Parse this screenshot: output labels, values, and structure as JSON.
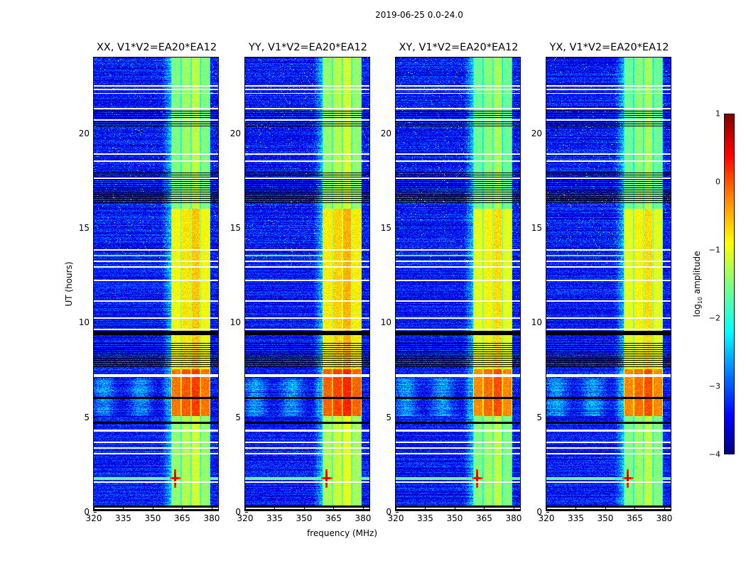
{
  "chart_data": {
    "type": "heatmap",
    "title": "2019-06-25 0.0-24.0",
    "panels": [
      {
        "title": "XX, V1*V2=EA20*EA12",
        "band_boost": 0.0
      },
      {
        "title": "YY, V1*V2=EA20*EA12",
        "band_boost": 0.1
      },
      {
        "title": "XY, V1*V2=EA20*EA12",
        "band_boost": -0.1
      },
      {
        "title": "YX, V1*V2=EA20*EA12",
        "band_boost": -0.1
      }
    ],
    "xlabel": "frequency (MHz)",
    "ylabel": "UT (hours)",
    "xlim": [
      320,
      384
    ],
    "ylim": [
      0,
      24
    ],
    "xticks": [
      "320",
      "335",
      "350",
      "365",
      "380"
    ],
    "yticks": [
      "0",
      "5",
      "10",
      "15",
      "20"
    ],
    "colorbar": {
      "label_prefix": "log",
      "label_sub": "10",
      "label_suffix": " amplitude",
      "range": [
        -4,
        1
      ],
      "ticks": [
        "1",
        "0",
        "−1",
        "−2",
        "−3",
        "−4"
      ]
    },
    "background_log_amplitude": -3.3,
    "bright_subbands_mhz": [
      [
        360,
        365
      ],
      [
        365,
        370
      ],
      [
        370,
        375
      ],
      [
        375,
        380
      ]
    ],
    "band_level_by_time": [
      {
        "from": 0,
        "to": 5,
        "level": -1.4
      },
      {
        "from": 5,
        "to": 7.5,
        "level": -0.2
      },
      {
        "from": 7.5,
        "to": 16,
        "level": -0.9
      },
      {
        "from": 16,
        "to": 24,
        "level": -1.5
      }
    ],
    "rfi_spike": {
      "freq_mhz": 362,
      "time_h": 1.7,
      "level": 0.7
    },
    "flagged_white_rows_h": [
      1.5,
      3.0,
      3.3,
      3.6,
      4.2,
      4.25,
      7.1,
      7.2,
      9.6,
      10.2,
      11.1,
      12.2,
      12.9,
      13.2,
      13.8,
      17.6,
      18.5,
      18.9,
      20.7,
      21.3,
      22.1,
      22.3,
      22.5,
      0.1
    ],
    "flagged_black_bands_h": [
      [
        0.0,
        0.25
      ],
      [
        7.6,
        8.9
      ],
      [
        16.2,
        17.9
      ],
      [
        20.3,
        21.3
      ],
      [
        9.3,
        9.5
      ],
      [
        5.9,
        6.0
      ],
      [
        4.6,
        4.7
      ]
    ]
  }
}
